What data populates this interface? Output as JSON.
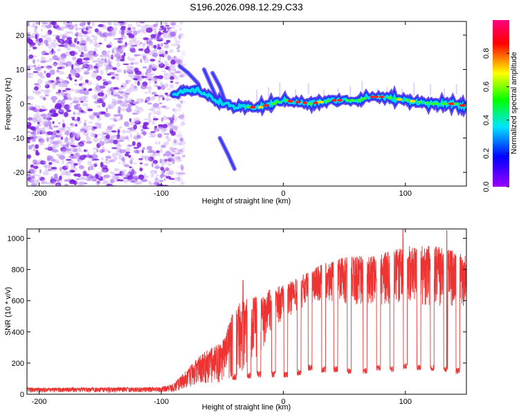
{
  "title": "S196.2026.098.12.29.C33",
  "chart_data": [
    {
      "type": "heatmap",
      "xlabel": "Height of straight line (km)",
      "ylabel": "Frequency (Hz)",
      "xlim": [
        -210,
        150
      ],
      "ylim": [
        -24,
        24
      ],
      "xticks": [
        -200,
        -100,
        0,
        100
      ],
      "yticks": [
        -20,
        -10,
        0,
        10,
        20
      ],
      "colorbar": {
        "label": "Normalized spectral amplitude",
        "range": [
          0.0,
          1.0
        ],
        "ticks": [
          0.0,
          0.2,
          0.4,
          0.6,
          0.8
        ],
        "colormap": [
          "#9a00ff",
          "#0000ff",
          "#00e5ff",
          "#00ff00",
          "#ffff00",
          "#ff0000",
          "#ff0080"
        ]
      },
      "features": {
        "noise_region_x": [
          -210,
          -90
        ],
        "noise_color": "#8a2be2",
        "ridge": [
          {
            "x": -90,
            "y": 3
          },
          {
            "x": -70,
            "y": 4
          },
          {
            "x": -55,
            "y": 1
          },
          {
            "x": -40,
            "y": -1
          },
          {
            "x": -20,
            "y": -1
          },
          {
            "x": -10,
            "y": 0
          },
          {
            "x": 0,
            "y": 1
          },
          {
            "x": 20,
            "y": 0
          },
          {
            "x": 40,
            "y": 1
          },
          {
            "x": 60,
            "y": 1
          },
          {
            "x": 70,
            "y": 2
          },
          {
            "x": 80,
            "y": 2
          },
          {
            "x": 100,
            "y": 1
          },
          {
            "x": 120,
            "y": 0
          },
          {
            "x": 140,
            "y": 0
          },
          {
            "x": 150,
            "y": -1
          }
        ],
        "branches": [
          [
            {
              "x": -85,
              "y": 11
            },
            {
              "x": -78,
              "y": 9
            },
            {
              "x": -70,
              "y": 6
            }
          ],
          [
            {
              "x": -65,
              "y": 10
            },
            {
              "x": -60,
              "y": 6
            },
            {
              "x": -55,
              "y": 2
            }
          ],
          [
            {
              "x": -58,
              "y": 9
            },
            {
              "x": -52,
              "y": 5
            },
            {
              "x": -48,
              "y": 1
            }
          ],
          [
            {
              "x": -52,
              "y": -10
            },
            {
              "x": -45,
              "y": -15
            },
            {
              "x": -40,
              "y": -19
            }
          ]
        ]
      }
    },
    {
      "type": "line",
      "xlabel": "Height of straight line (km)",
      "ylabel": "SNR (10 * v/v)",
      "xlim": [
        -210,
        150
      ],
      "ylim": [
        0,
        1060
      ],
      "xticks": [
        -200,
        -100,
        0,
        100
      ],
      "yticks": [
        0,
        200,
        400,
        600,
        800,
        1000
      ],
      "color": "#ee3333",
      "envelope": [
        {
          "x": -210,
          "low": 12,
          "high": 42
        },
        {
          "x": -100,
          "low": 12,
          "high": 45
        },
        {
          "x": -90,
          "low": 15,
          "high": 70
        },
        {
          "x": -80,
          "low": 40,
          "high": 150
        },
        {
          "x": -70,
          "low": 60,
          "high": 240
        },
        {
          "x": -60,
          "low": 70,
          "high": 300
        },
        {
          "x": -50,
          "low": 80,
          "high": 330
        },
        {
          "x": -40,
          "low": 100,
          "high": 560
        },
        {
          "x": -30,
          "low": 180,
          "high": 620
        },
        {
          "x": -20,
          "low": 250,
          "high": 640
        },
        {
          "x": -10,
          "low": 380,
          "high": 680
        },
        {
          "x": 0,
          "low": 480,
          "high": 700
        },
        {
          "x": 10,
          "low": 520,
          "high": 740
        },
        {
          "x": 20,
          "low": 580,
          "high": 780
        },
        {
          "x": 30,
          "low": 600,
          "high": 830
        },
        {
          "x": 50,
          "low": 580,
          "high": 880
        },
        {
          "x": 80,
          "low": 560,
          "high": 900
        },
        {
          "x": 100,
          "low": 600,
          "high": 950
        },
        {
          "x": 120,
          "low": 560,
          "high": 960
        },
        {
          "x": 150,
          "low": 560,
          "high": 900
        }
      ],
      "spikes": [
        {
          "x": -33,
          "y": 730
        },
        {
          "x": 98,
          "y": 1060
        },
        {
          "x": 134,
          "y": 1050
        }
      ],
      "dips": [
        {
          "x": -40,
          "y": 90
        },
        {
          "x": -28,
          "y": 100
        },
        {
          "x": -20,
          "y": 110
        },
        {
          "x": -8,
          "y": 110
        },
        {
          "x": 2,
          "y": 105
        },
        {
          "x": 13,
          "y": 120
        },
        {
          "x": 22,
          "y": 150
        },
        {
          "x": 33,
          "y": 140
        },
        {
          "x": 43,
          "y": 140
        },
        {
          "x": 54,
          "y": 130
        },
        {
          "x": 67,
          "y": 130
        },
        {
          "x": 78,
          "y": 150
        },
        {
          "x": 89,
          "y": 140
        },
        {
          "x": 100,
          "y": 160
        },
        {
          "x": 111,
          "y": 150
        },
        {
          "x": 122,
          "y": 150
        },
        {
          "x": 133,
          "y": 140
        },
        {
          "x": 143,
          "y": 130
        }
      ]
    }
  ]
}
